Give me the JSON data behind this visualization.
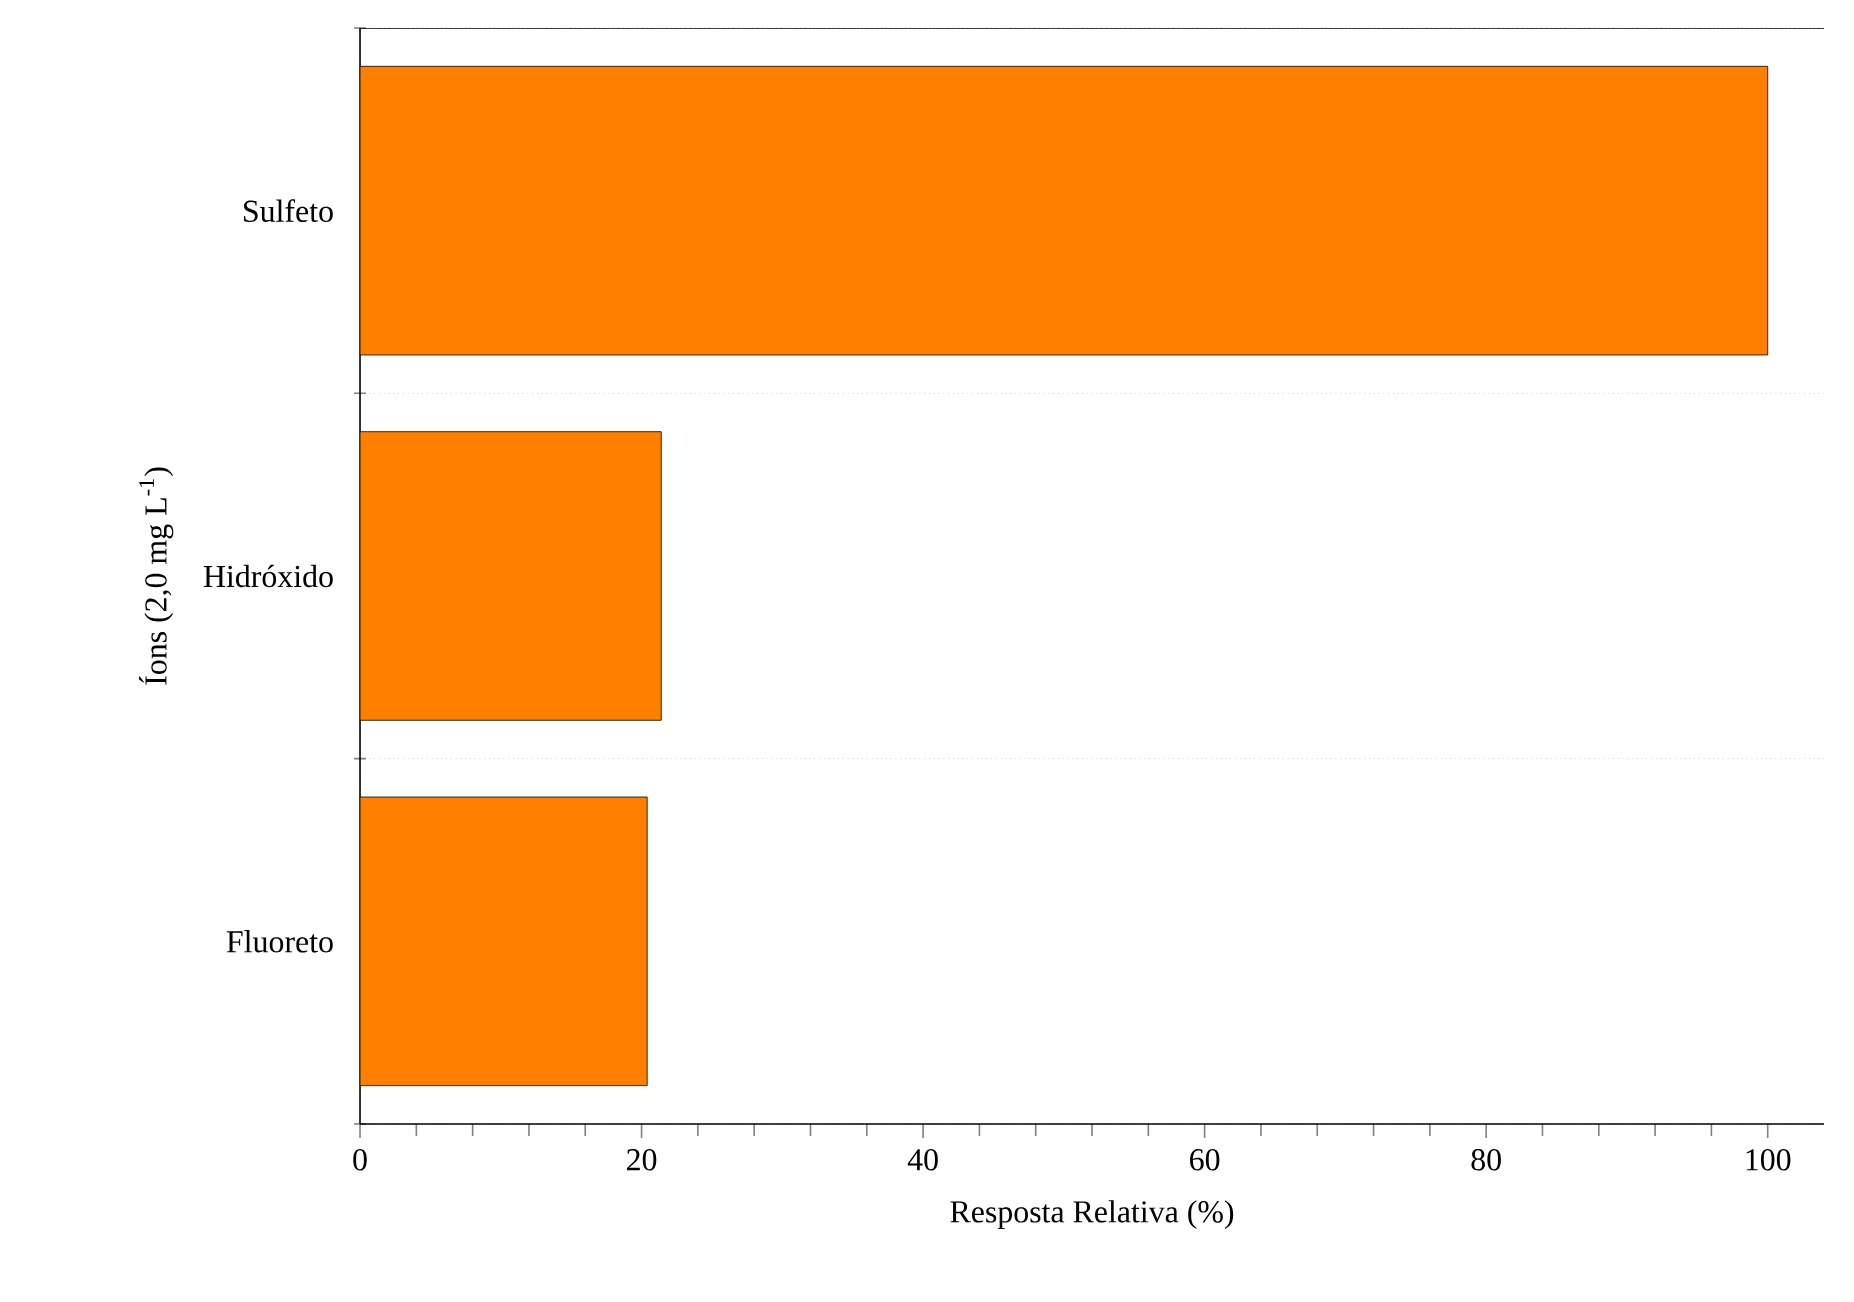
{
  "chart_data": {
    "type": "bar",
    "orientation": "horizontal",
    "xlabel": "Resposta Relativa (%)",
    "ylabel": "Íons (2,0 mg L$^{-1}$)",
    "categories": [
      "Sulfeto",
      "Hidróxido",
      "Fluoreto"
    ],
    "values": [
      100,
      21.4,
      20.4
    ],
    "color": "#ff8000",
    "xlim": [
      0,
      104
    ],
    "xticks": [
      0,
      20,
      40,
      60,
      80,
      100
    ],
    "grid": "y"
  }
}
